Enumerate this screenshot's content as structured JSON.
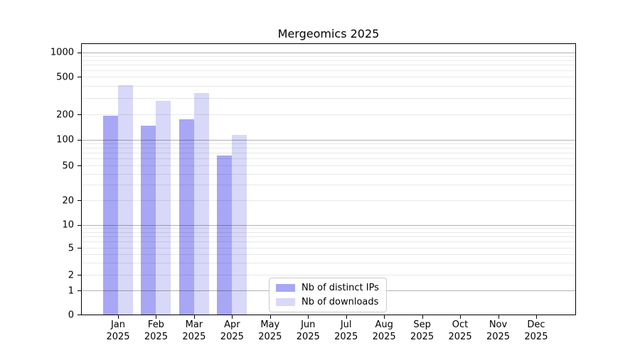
{
  "figure": {
    "background": "#ffffff"
  },
  "chart_data": {
    "type": "bar",
    "title": "Mergeomics 2025",
    "categories": [
      "Jan",
      "Feb",
      "Mar",
      "Apr",
      "May",
      "Jun",
      "Jul",
      "Aug",
      "Sep",
      "Oct",
      "Nov",
      "Dec"
    ],
    "x_tick_year": "2025",
    "xlabel": "",
    "ylabel": "",
    "y_scale": "symlog (linear 0-1, log above 1)",
    "ylim": [
      0,
      1280
    ],
    "y_ticks": [
      0,
      1,
      2,
      5,
      10,
      20,
      50,
      100,
      200,
      500,
      1000
    ],
    "y_major_gridlines": [
      1,
      10,
      100,
      1000
    ],
    "y_minor_gridlines": [
      2,
      3,
      4,
      5,
      6,
      7,
      8,
      9,
      20,
      30,
      40,
      50,
      60,
      70,
      80,
      90,
      200,
      300,
      400,
      500,
      600,
      700,
      800,
      900
    ],
    "grid": "horizontal major+minor, gridlines visible through translucent bars",
    "legend_position": "inside bottom, left-of-center",
    "series": [
      {
        "name": "Nb of distinct IPs",
        "color": "#a7a7f5",
        "values": [
          195,
          150,
          178,
          66,
          null,
          null,
          null,
          null,
          null,
          null,
          null,
          null
        ]
      },
      {
        "name": "Nb of downloads",
        "color": "#d8d8f8",
        "values": [
          415,
          285,
          345,
          117,
          null,
          null,
          null,
          null,
          null,
          null,
          null,
          null
        ]
      }
    ]
  }
}
